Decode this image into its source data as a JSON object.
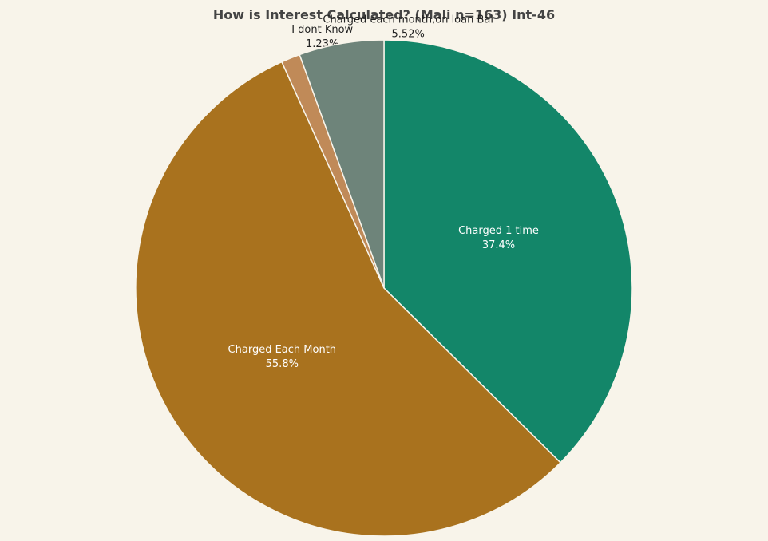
{
  "chart_data": {
    "type": "pie",
    "title": "How is Interest Calculated? (Mali n=163) Int-46",
    "direction": "clockwise",
    "start_angle_deg": 90,
    "slices": [
      {
        "label": "Charged 1 time",
        "value": 37.4,
        "display": "37.4%",
        "color": "#138669",
        "label_position": "inside"
      },
      {
        "label": "Charged Each Month",
        "value": 55.8,
        "display": "55.8%",
        "color": "#a9721e",
        "label_position": "inside"
      },
      {
        "label": "I dont Know",
        "value": 1.23,
        "display": "1.23%",
        "color": "#c08a58",
        "label_position": "outside"
      },
      {
        "label": "Charged each month,on loan Bal",
        "value": 5.52,
        "display": "5.52%",
        "color": "#6e847a",
        "label_position": "outside"
      }
    ]
  }
}
